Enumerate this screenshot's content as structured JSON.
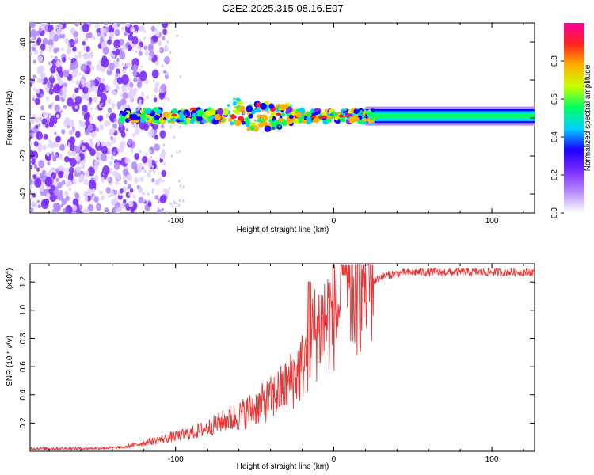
{
  "title": "C2E2.2025.315.08.16.E07",
  "chart_data": [
    {
      "type": "heatmap",
      "title": "",
      "xlabel": "Height of straight line (km)",
      "ylabel": "Frequency (Hz)",
      "xlim": [
        -192,
        127
      ],
      "ylim": [
        -50,
        50
      ],
      "x_ticks": [
        -100,
        0,
        100
      ],
      "x_tick_labels": [
        "-100",
        "0",
        "100"
      ],
      "y_ticks": [
        -40,
        -20,
        0,
        20,
        40
      ],
      "y_tick_labels": [
        "-40",
        "-20",
        "0",
        "20",
        "40"
      ],
      "signal_band": {
        "x_start": -135,
        "x_end": 127,
        "center_freq": 1,
        "note": "narrow band near 0 Hz; noisy scatter below -125 km"
      },
      "colorbar": {
        "label": "Normalized spectral amplitude",
        "range": [
          0.0,
          1.0
        ],
        "ticks": [
          0.0,
          0.2,
          0.4,
          0.6,
          0.8
        ],
        "tick_labels": [
          "0.0",
          "0.2",
          "0.4",
          "0.6",
          "0.8"
        ],
        "colors": [
          "#ffffff",
          "#b48cff",
          "#7b2cff",
          "#1a00ff",
          "#00d0ff",
          "#00ff60",
          "#c8ff00",
          "#ffb000",
          "#ff2020",
          "#ff00a0"
        ]
      }
    },
    {
      "type": "line",
      "title": "",
      "xlabel": "Height of straight line (km)",
      "ylabel": "SNR (10 * v/v)",
      "y_multiplier_label": "(x10",
      "y_multiplier_exp": "4",
      "xlim": [
        -192,
        127
      ],
      "ylim": [
        0,
        1.33
      ],
      "x_ticks": [
        -100,
        0,
        100
      ],
      "x_tick_labels": [
        "-100",
        "0",
        "100"
      ],
      "y_ticks": [
        0.2,
        0.4,
        0.6,
        0.8,
        1.0,
        1.2
      ],
      "y_tick_labels": [
        "0.2",
        "0.4",
        "0.6",
        "0.8",
        "1.0",
        "1.2"
      ],
      "line_color": "#ee3333",
      "series": [
        {
          "name": "SNR",
          "x": [
            -192,
            -180,
            -160,
            -140,
            -130,
            -120,
            -110,
            -100,
            -90,
            -80,
            -70,
            -60,
            -50,
            -40,
            -30,
            -20,
            -15,
            -10,
            -5,
            0,
            5,
            10,
            15,
            20,
            25,
            30,
            40,
            50,
            60,
            80,
            100,
            127
          ],
          "values": [
            0.02,
            0.02,
            0.02,
            0.025,
            0.03,
            0.05,
            0.07,
            0.09,
            0.11,
            0.14,
            0.18,
            0.23,
            0.28,
            0.34,
            0.42,
            0.55,
            0.7,
            0.8,
            0.86,
            0.9,
            0.95,
            1.0,
            1.06,
            1.14,
            1.2,
            1.24,
            1.26,
            1.27,
            1.27,
            1.27,
            1.27,
            1.27
          ]
        }
      ]
    }
  ]
}
